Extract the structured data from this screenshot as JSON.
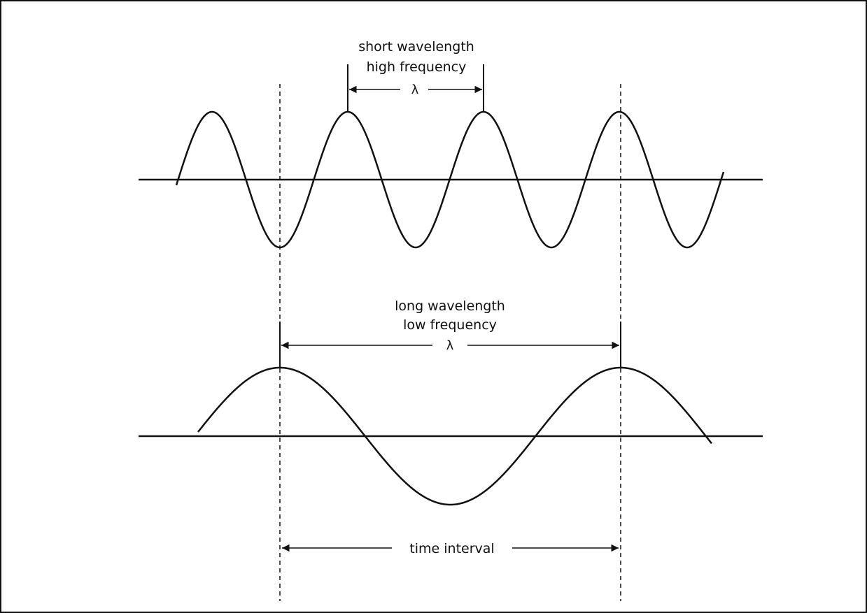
{
  "short_wave": {
    "label_line1": "short wavelength",
    "label_line2": "high frequency",
    "wavelength_symbol": "λ"
  },
  "long_wave": {
    "label_line1": "long wavelength",
    "label_line2": "low frequency",
    "wavelength_symbol": "λ"
  },
  "time_interval_label": "time interval",
  "colors": {
    "stroke": "#111111",
    "background": "#ffffff"
  }
}
